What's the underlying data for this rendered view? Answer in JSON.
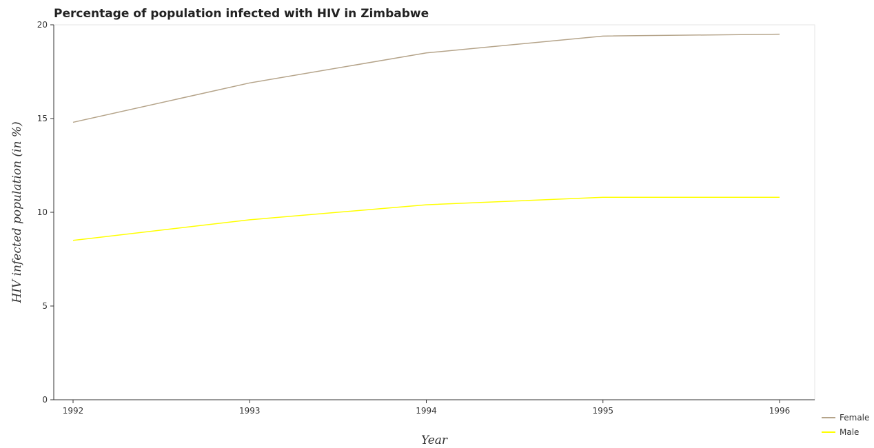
{
  "chart_data": {
    "type": "line",
    "title": "Percentage of population infected with HIV in Zimbabwe",
    "xlabel": "Year",
    "ylabel": "HIV infected population (in %)",
    "categories": [
      "1992",
      "1993",
      "1994",
      "1995",
      "1996"
    ],
    "ylim": [
      0,
      20
    ],
    "yticks": [
      "0",
      "5",
      "10",
      "15",
      "20"
    ],
    "grid": false,
    "legend_position": "bottom-right",
    "series": [
      {
        "name": "Female",
        "color": "#b5a48a",
        "values": [
          14.8,
          16.9,
          18.5,
          19.4,
          19.5
        ]
      },
      {
        "name": "Male",
        "color": "#ffff00",
        "values": [
          8.5,
          9.6,
          10.4,
          10.8,
          10.8
        ]
      }
    ]
  }
}
